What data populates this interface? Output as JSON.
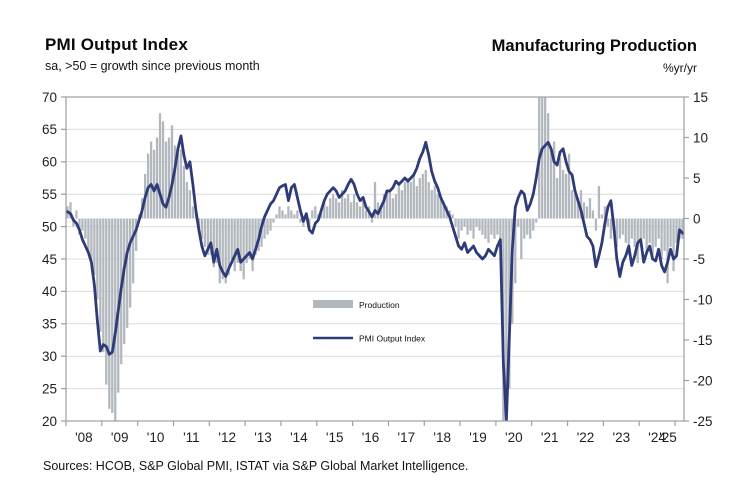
{
  "header": {
    "left_title": "PMI Output Index",
    "left_subtitle": "sa, >50 = growth since previous month",
    "right_title": "Manufacturing Production",
    "right_subtitle": "%yr/yr"
  },
  "footer": {
    "source": "Sources: HCOB, S&P Global PMI, ISTAT via S&P Global Market Intelligence."
  },
  "colors": {
    "bar": "#b2b8bd",
    "line": "#2e3b78",
    "grid": "#dcdcdc",
    "border": "#9aa0a5",
    "axis_text": "#1f1f1f",
    "background": "#ffffff"
  },
  "chart_data": {
    "type": "bar+line",
    "title_left": "PMI Output Index",
    "title_right": "Manufacturing Production",
    "x_start": "2008-01",
    "x_end": "2025-03",
    "months_per_point": 1,
    "x_tick_labels": [
      "'08",
      "'09",
      "'10",
      "'11",
      "'12",
      "'13",
      "'14",
      "'15",
      "'16",
      "'17",
      "'18",
      "'19",
      "'20",
      "'21",
      "'22",
      "'23",
      "'24",
      "'25"
    ],
    "left_axis": {
      "title": "PMI Output Index (sa, >50 = growth)",
      "min": 20,
      "max": 70,
      "tick_step": 5,
      "ticks": [
        20,
        25,
        30,
        35,
        40,
        45,
        50,
        55,
        60,
        65,
        70
      ]
    },
    "right_axis": {
      "title": "Manufacturing Production, %yr/yr",
      "min": -25,
      "max": 15,
      "tick_step": 5,
      "ticks": [
        -25,
        -20,
        -15,
        -10,
        -5,
        0,
        5,
        10,
        15
      ]
    },
    "grid": true,
    "legend_position": "center-inside",
    "legend": [
      {
        "label": "Production",
        "type": "bar",
        "color": "#b2b8bd"
      },
      {
        "label": "PMI Output Index",
        "type": "line",
        "color": "#2e3b78"
      }
    ],
    "series": [
      {
        "name": "Production",
        "axis": "right",
        "type": "bar",
        "note": "values clipped at axis limits (-25 / +15) where bars run off chart (2009, 2020, 2021)",
        "values": [
          1.5,
          2.0,
          -1.0,
          1.0,
          -2.0,
          -1.5,
          -2.5,
          -4.0,
          -5.5,
          -7.0,
          -10.0,
          -14.0,
          -16.5,
          -20.5,
          -23.5,
          -24.0,
          -25.0,
          -21.5,
          -18.0,
          -15.5,
          -13.5,
          -11.0,
          -8.0,
          -4.0,
          0.5,
          2.5,
          5.5,
          8.0,
          9.5,
          8.5,
          10.0,
          13.0,
          12.0,
          9.5,
          10.0,
          11.5,
          9.0,
          8.0,
          8.5,
          6.5,
          4.5,
          3.5,
          1.5,
          1.0,
          -1.5,
          -2.5,
          -3.5,
          -4.5,
          -4.5,
          -6.0,
          -5.5,
          -8.0,
          -7.5,
          -8.0,
          -7.0,
          -5.0,
          -6.5,
          -5.5,
          -6.5,
          -7.5,
          -5.5,
          -5.0,
          -6.5,
          -4.5,
          -4.0,
          -3.5,
          -2.5,
          -2.0,
          -1.5,
          -0.5,
          0.5,
          1.5,
          1.0,
          0.5,
          1.5,
          1.0,
          0.5,
          1.0,
          -0.5,
          -1.0,
          0.5,
          -1.5,
          1.0,
          1.5,
          0.5,
          1.0,
          2.0,
          1.5,
          2.5,
          3.0,
          2.5,
          2.0,
          3.5,
          2.5,
          3.0,
          2.0,
          3.0,
          2.0,
          1.5,
          2.5,
          1.0,
          1.5,
          -0.5,
          4.5,
          2.0,
          1.5,
          3.0,
          3.5,
          3.5,
          2.5,
          3.0,
          4.0,
          3.5,
          4.5,
          5.0,
          4.5,
          5.5,
          4.0,
          5.0,
          5.5,
          6.0,
          4.5,
          3.5,
          4.0,
          3.0,
          2.5,
          2.0,
          1.5,
          1.0,
          0.5,
          -1.0,
          -2.5,
          -1.5,
          -1.0,
          -2.0,
          -1.5,
          -2.5,
          -1.0,
          -1.5,
          -2.0,
          -2.5,
          -3.0,
          -2.0,
          -2.5,
          -2.0,
          -2.5,
          -25.0,
          -25.0,
          -21.0,
          -13.0,
          -8.0,
          -1.0,
          -5.0,
          -2.5,
          -2.0,
          -2.5,
          -1.5,
          -0.5,
          15.0,
          15.0,
          15.0,
          13.0,
          8.5,
          9.5,
          5.0,
          7.5,
          6.0,
          5.5,
          8.0,
          3.5,
          3.0,
          2.5,
          3.5,
          2.0,
          1.5,
          2.5,
          1.0,
          -1.5,
          4.0,
          0.5,
          1.5,
          -1.0,
          -2.5,
          -1.5,
          -3.5,
          -2.5,
          -2.0,
          -3.0,
          -4.5,
          -2.5,
          -3.5,
          -5.5,
          -3.5,
          -2.5,
          -4.0,
          -3.0,
          -4.5,
          -3.5,
          -2.5,
          -5.0,
          -4.0,
          -8.0,
          -3.5,
          -6.5,
          -3.0,
          -2.5,
          -2.5
        ]
      },
      {
        "name": "PMI Output Index",
        "axis": "left",
        "type": "line",
        "note": "April 2020 plunge runs below the 20 floor of the chart (clipped)",
        "values": [
          52.3,
          52.0,
          51.0,
          50.5,
          49.5,
          48.0,
          47.0,
          46.0,
          44.5,
          41.0,
          35.5,
          30.8,
          31.8,
          31.5,
          30.3,
          30.6,
          33.5,
          37.0,
          40.5,
          43.5,
          46.0,
          47.5,
          48.5,
          49.5,
          51.0,
          52.5,
          54.5,
          56.0,
          56.5,
          55.5,
          56.5,
          55.0,
          53.5,
          53.0,
          54.5,
          56.5,
          59.0,
          62.0,
          64.0,
          61.0,
          59.0,
          60.0,
          56.5,
          52.5,
          49.5,
          47.0,
          45.5,
          46.5,
          47.5,
          44.5,
          46.5,
          44.0,
          43.0,
          42.3,
          43.5,
          44.5,
          45.5,
          46.5,
          44.5,
          45.0,
          45.5,
          46.0,
          45.0,
          46.5,
          48.0,
          50.0,
          51.5,
          52.5,
          53.5,
          54.0,
          55.0,
          56.0,
          56.3,
          56.5,
          54.0,
          56.0,
          56.5,
          54.5,
          52.5,
          50.8,
          52.0,
          49.5,
          49.0,
          50.5,
          51.0,
          52.5,
          54.0,
          55.0,
          55.5,
          56.0,
          55.5,
          54.5,
          55.0,
          55.5,
          56.5,
          57.3,
          56.5,
          55.0,
          54.0,
          54.5,
          53.0,
          52.3,
          51.5,
          52.5,
          52.0,
          53.0,
          54.0,
          55.5,
          55.5,
          56.0,
          57.0,
          56.5,
          57.0,
          57.5,
          57.0,
          57.5,
          58.0,
          59.0,
          60.5,
          61.5,
          63.0,
          61.0,
          58.5,
          57.0,
          56.0,
          54.5,
          53.5,
          52.5,
          51.5,
          50.0,
          48.5,
          47.0,
          46.5,
          47.5,
          46.0,
          46.5,
          47.0,
          46.0,
          45.5,
          45.0,
          45.5,
          46.5,
          46.0,
          45.5,
          47.0,
          48.0,
          29.0,
          18.0,
          33.0,
          46.5,
          53.0,
          54.5,
          55.5,
          55.0,
          52.5,
          53.5,
          55.0,
          57.5,
          60.5,
          62.0,
          62.5,
          63.0,
          62.0,
          60.0,
          59.5,
          61.5,
          62.0,
          60.0,
          58.5,
          58.0,
          55.5,
          54.0,
          52.5,
          50.5,
          48.5,
          48.0,
          47.0,
          43.8,
          45.5,
          47.5,
          50.5,
          53.0,
          54.0,
          50.0,
          45.0,
          42.3,
          44.5,
          45.5,
          47.0,
          44.0,
          45.5,
          47.5,
          48.0,
          44.5,
          46.0,
          47.0,
          45.0,
          44.7,
          46.5,
          44.0,
          43.0,
          44.5,
          46.5,
          45.0,
          45.5,
          49.5,
          49.0
        ]
      }
    ]
  }
}
